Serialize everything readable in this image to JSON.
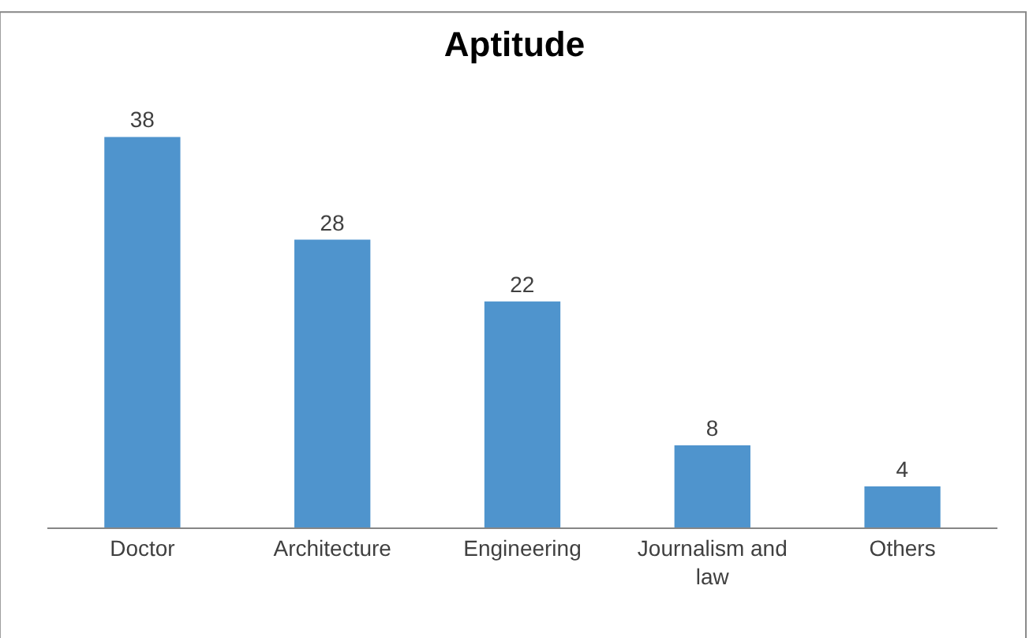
{
  "chart_data": {
    "type": "bar",
    "title": "Aptitude",
    "categories": [
      "Doctor",
      "Architecture",
      "Engineering",
      "Journalism and law",
      "Others"
    ],
    "values": [
      38,
      28,
      22,
      8,
      4
    ],
    "color": "#4f94cd",
    "data_labels": true
  }
}
